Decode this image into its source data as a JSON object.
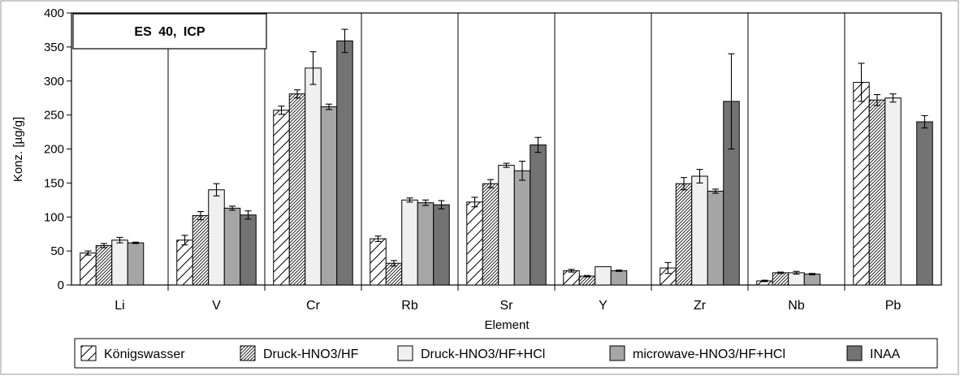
{
  "chart_data": {
    "type": "bar",
    "title": "ES 40, ICP",
    "xlabel": "Element",
    "ylabel": "Konz. [µg/g]",
    "ylim": [
      0,
      400
    ],
    "y_ticks": [
      0,
      50,
      100,
      150,
      200,
      250,
      300,
      350,
      400
    ],
    "categories": [
      "Li",
      "V",
      "Cr",
      "Rb",
      "Sr",
      "Y",
      "Zr",
      "Nb",
      "Pb"
    ],
    "grid": "vertical separators between categories",
    "legend_position": "bottom",
    "series": [
      {
        "name": "Königswasser",
        "pattern": "sparse-diagonal-hatch",
        "color": "#ffffff",
        "values": [
          47,
          66,
          257,
          68,
          122,
          21,
          25,
          6,
          298
        ],
        "errors": [
          3,
          7,
          6,
          4,
          7,
          2,
          8,
          1,
          28
        ]
      },
      {
        "name": "Druck-HNO3/HF",
        "pattern": "dense-diagonal-hatch",
        "color": "#ffffff",
        "values": [
          58,
          102,
          281,
          32,
          149,
          13,
          149,
          18,
          272
        ],
        "errors": [
          3,
          6,
          6,
          4,
          6,
          1,
          9,
          1,
          8
        ]
      },
      {
        "name": "Druck-HNO3/HF+HCl",
        "pattern": "solid",
        "color": "#f0f0f0",
        "values": [
          66,
          140,
          319,
          125,
          176,
          27,
          160,
          18,
          275
        ],
        "errors": [
          4,
          9,
          24,
          3,
          3,
          0,
          10,
          2,
          6
        ]
      },
      {
        "name": "microwave-HNO3/HF+HCl",
        "pattern": "solid",
        "color": "#a6a6a6",
        "values": [
          62,
          113,
          262,
          121,
          168,
          21,
          138,
          16,
          null
        ],
        "errors": [
          1,
          3,
          4,
          4,
          14,
          1,
          3,
          1,
          null
        ]
      },
      {
        "name": "INAA",
        "pattern": "solid",
        "color": "#737373",
        "values": [
          null,
          103,
          359,
          118,
          206,
          null,
          270,
          null,
          240
        ],
        "errors": [
          null,
          6,
          17,
          6,
          11,
          null,
          70,
          null,
          9
        ]
      }
    ]
  }
}
